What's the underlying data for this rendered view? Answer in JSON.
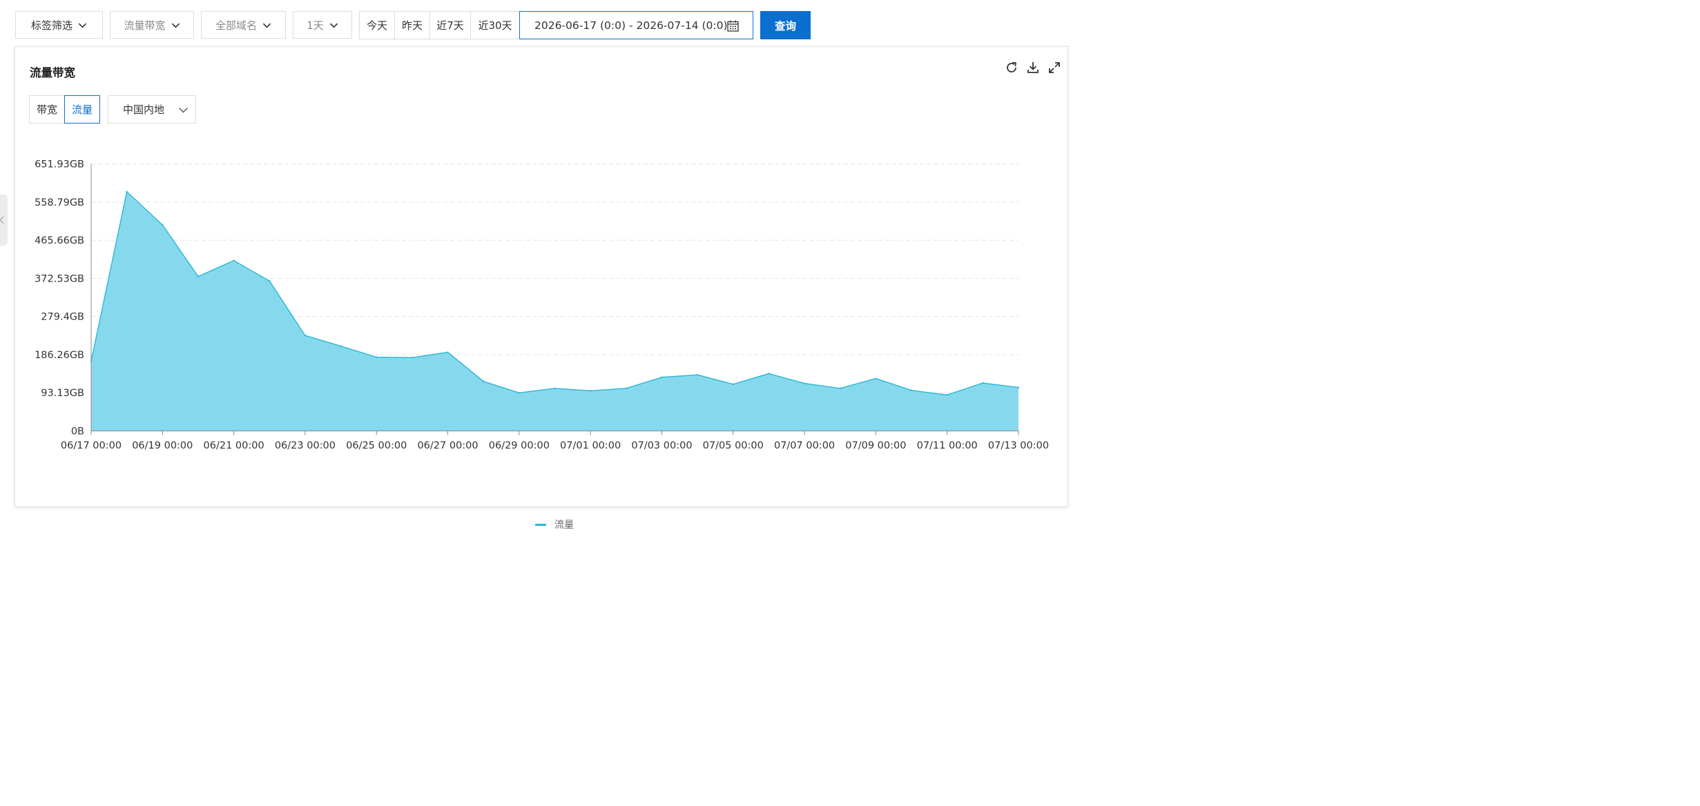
{
  "toolbar": {
    "tag_filter": "标签筛选",
    "metric": "流量带宽",
    "domain": "全部域名",
    "granularity": "1天",
    "quick_ranges": [
      "今天",
      "昨天",
      "近7天",
      "近30天"
    ],
    "date_range": "2026-06-17 (0:0) - 2026-07-14 (0:0)",
    "query_label": "查询"
  },
  "panel": {
    "title": "流量带宽",
    "tabs": [
      "带宽",
      "流量"
    ],
    "active_tab": "流量",
    "region": "中国内地",
    "tool_icons": [
      "refresh-icon",
      "download-icon",
      "fullscreen-icon"
    ]
  },
  "chart_data": {
    "type": "area",
    "title": "",
    "xlabel": "",
    "ylabel": "",
    "x": [
      "06/17",
      "06/18",
      "06/19",
      "06/20",
      "06/21",
      "06/22",
      "06/23",
      "06/24",
      "06/25",
      "06/26",
      "06/27",
      "06/28",
      "06/29",
      "06/30",
      "07/01",
      "07/02",
      "07/03",
      "07/04",
      "07/05",
      "07/06",
      "07/07",
      "07/08",
      "07/09",
      "07/10",
      "07/11",
      "07/12",
      "07/13"
    ],
    "x_tick_labels": [
      "06/17 00:00",
      "06/19 00:00",
      "06/21 00:00",
      "06/23 00:00",
      "06/25 00:00",
      "06/27 00:00",
      "06/29 00:00",
      "07/01 00:00",
      "07/03 00:00",
      "07/05 00:00",
      "07/07 00:00",
      "07/09 00:00",
      "07/11 00:00",
      "07/13 00:00"
    ],
    "y_tick_labels": [
      "0B",
      "93.13GB",
      "186.26GB",
      "279.4GB",
      "372.53GB",
      "465.66GB",
      "558.79GB",
      "651.93GB"
    ],
    "ylim": [
      0,
      651.93
    ],
    "y_unit": "GB",
    "grid": true,
    "legend_position": "bottom-center",
    "series": [
      {
        "name": "流量",
        "color": "#2bb6d6",
        "fill": "#86d9ec",
        "values": [
          170,
          584,
          503,
          377,
          416,
          366,
          233,
          207,
          180,
          179,
          192,
          121,
          93,
          104,
          98,
          104,
          131,
          137,
          114,
          140,
          116,
          104,
          128,
          99,
          88,
          117,
          106
        ]
      }
    ]
  }
}
